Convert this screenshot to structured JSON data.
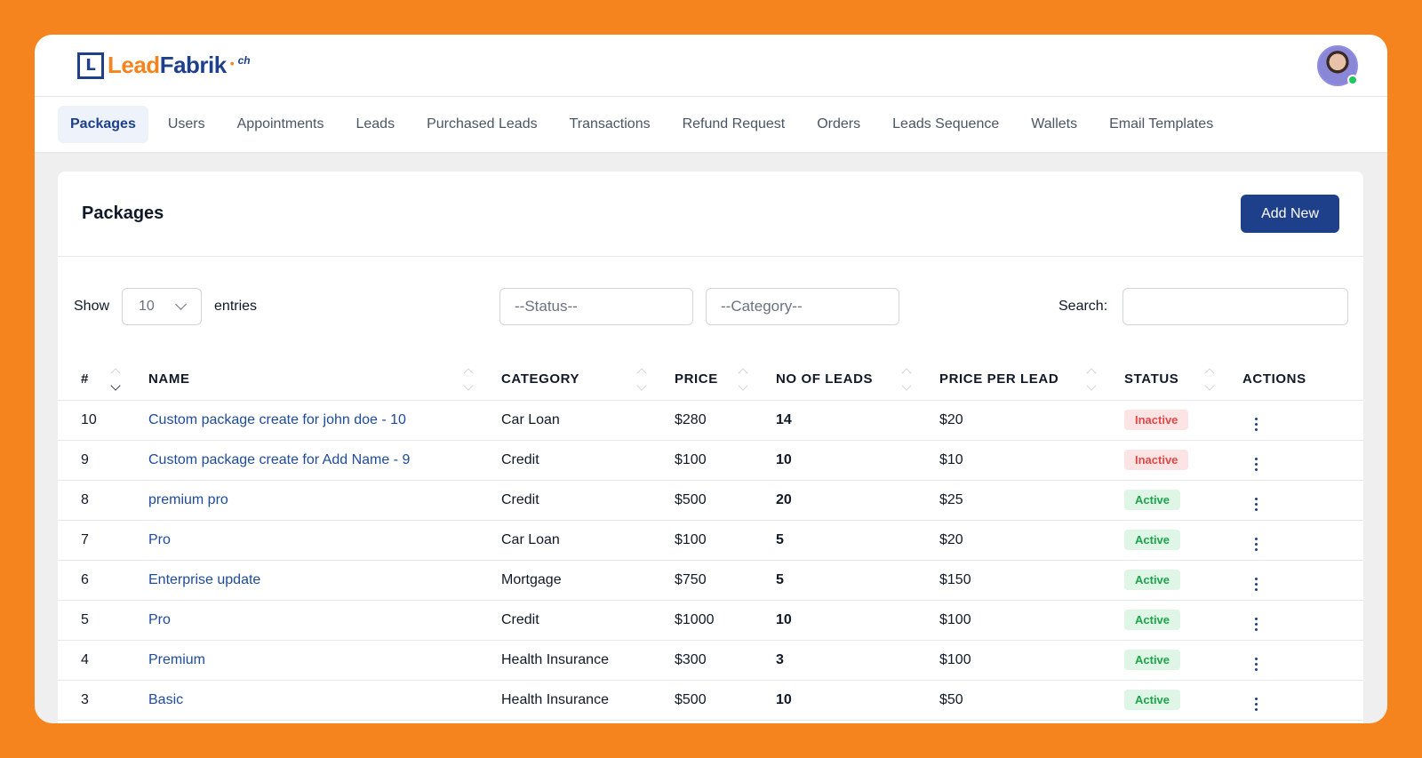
{
  "brand": {
    "lead": "Lead",
    "fabrik": "Fabrik",
    "suffix": "ch",
    "mark": "L"
  },
  "nav": {
    "items": [
      {
        "label": "Packages",
        "active": true
      },
      {
        "label": "Users"
      },
      {
        "label": "Appointments"
      },
      {
        "label": "Leads"
      },
      {
        "label": "Purchased Leads"
      },
      {
        "label": "Transactions"
      },
      {
        "label": "Refund Request"
      },
      {
        "label": "Orders"
      },
      {
        "label": "Leads Sequence"
      },
      {
        "label": "Wallets"
      },
      {
        "label": "Email Templates"
      }
    ]
  },
  "page": {
    "title": "Packages",
    "add_label": "Add New"
  },
  "filters": {
    "show_label": "Show",
    "entries_value": "10",
    "entries_label": "entries",
    "status_placeholder": "--Status--",
    "category_placeholder": "--Category--",
    "search_label": "Search:"
  },
  "table": {
    "headers": [
      "#",
      "NAME",
      "CATEGORY",
      "PRICE",
      "NO OF LEADS",
      "PRICE PER LEAD",
      "STATUS",
      "ACTIONS"
    ],
    "rows": [
      {
        "id": "10",
        "name": "Custom package create for john doe - 10",
        "category": "Car Loan",
        "price": "$280",
        "leads": "14",
        "ppl": "$20",
        "status": "Inactive"
      },
      {
        "id": "9",
        "name": "Custom package create for Add Name - 9",
        "category": "Credit",
        "price": "$100",
        "leads": "10",
        "ppl": "$10",
        "status": "Inactive"
      },
      {
        "id": "8",
        "name": "premium pro",
        "category": "Credit",
        "price": "$500",
        "leads": "20",
        "ppl": "$25",
        "status": "Active"
      },
      {
        "id": "7",
        "name": "Pro",
        "category": "Car Loan",
        "price": "$100",
        "leads": "5",
        "ppl": "$20",
        "status": "Active"
      },
      {
        "id": "6",
        "name": "Enterprise update",
        "category": "Mortgage",
        "price": "$750",
        "leads": "5",
        "ppl": "$150",
        "status": "Active"
      },
      {
        "id": "5",
        "name": "Pro",
        "category": "Credit",
        "price": "$1000",
        "leads": "10",
        "ppl": "$100",
        "status": "Active"
      },
      {
        "id": "4",
        "name": "Premium",
        "category": "Health Insurance",
        "price": "$300",
        "leads": "3",
        "ppl": "$100",
        "status": "Active"
      },
      {
        "id": "3",
        "name": "Basic",
        "category": "Health Insurance",
        "price": "$500",
        "leads": "10",
        "ppl": "$50",
        "status": "Active"
      }
    ]
  }
}
